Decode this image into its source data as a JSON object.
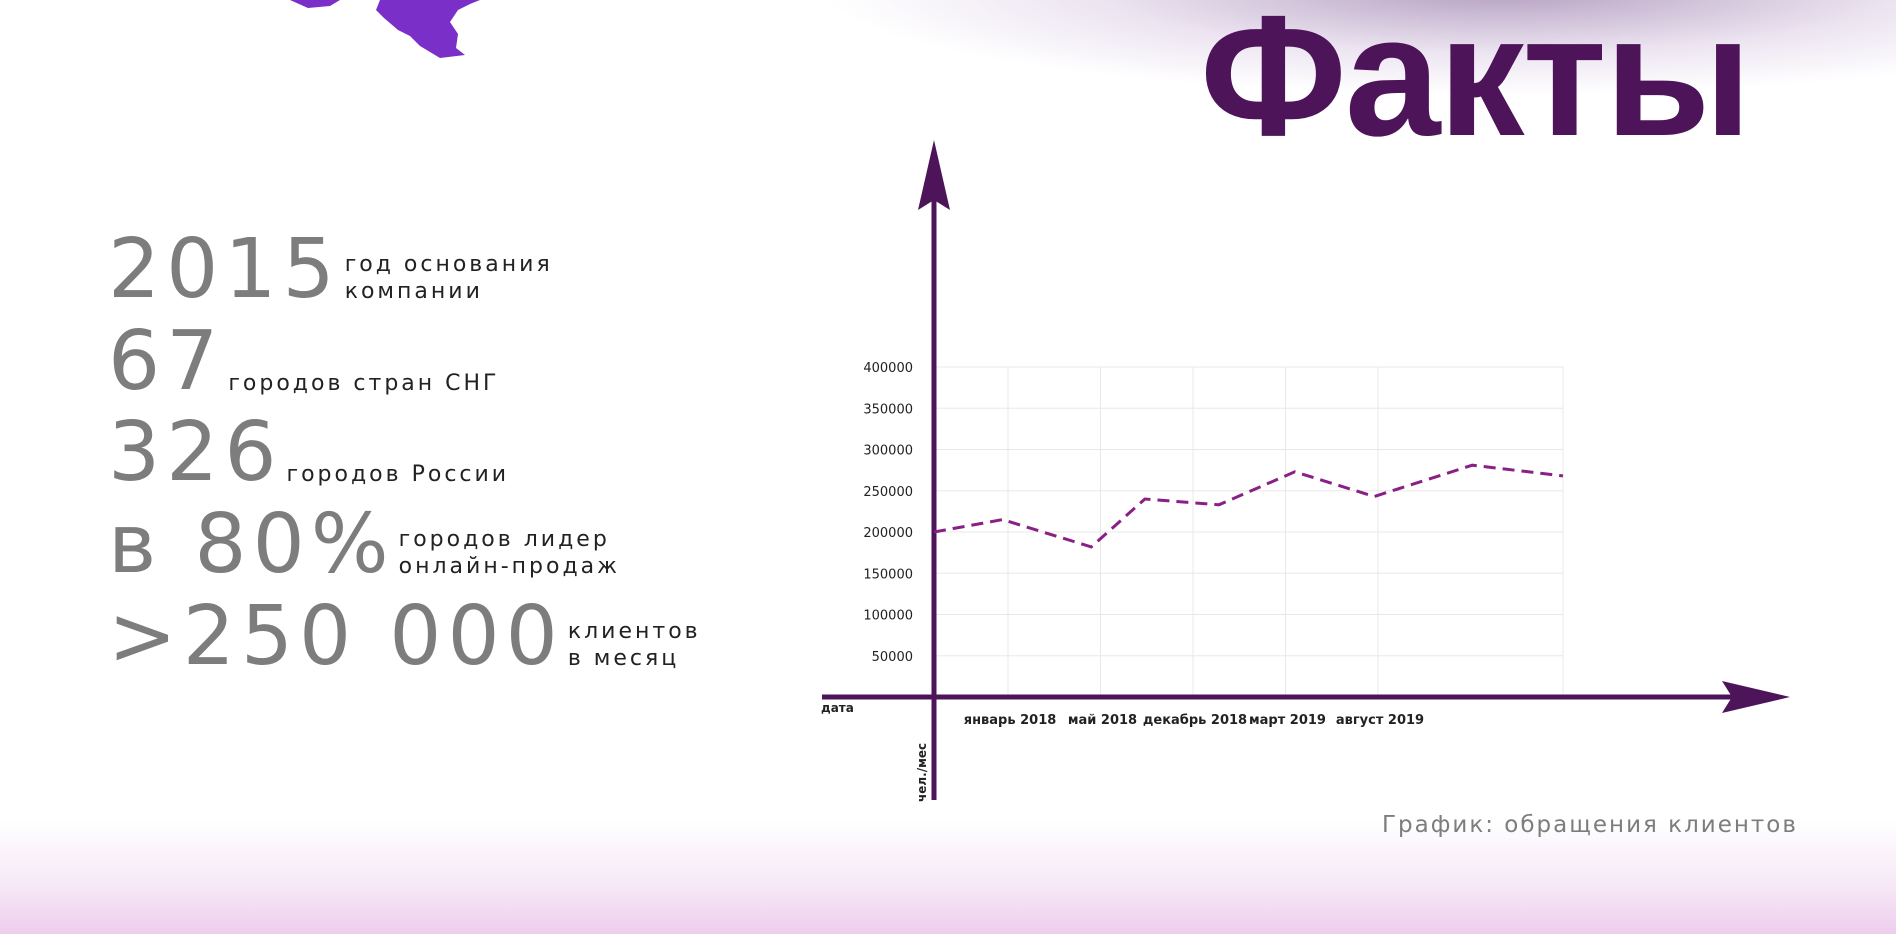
{
  "title": "Факты",
  "colors": {
    "accent": "#4d1459",
    "logo": "#7a2fc8",
    "series": "#8a1f86",
    "muted_text": "#7d7d7d"
  },
  "facts": [
    {
      "big": "2015",
      "small": [
        "год основания",
        "компании"
      ]
    },
    {
      "big": "67",
      "small": [
        "городов стран СНГ"
      ]
    },
    {
      "big": "326",
      "small": [
        "городов России"
      ]
    },
    {
      "big": "в 80%",
      "small": [
        "городов лидер",
        "онлайн-продаж"
      ]
    },
    {
      "big": ">250 000",
      "small": [
        "клиентов",
        "в месяц"
      ]
    }
  ],
  "chart_caption": "График: обращения клиентов",
  "chart_data": {
    "type": "line",
    "title": "",
    "xlabel": "дата",
    "ylabel": "чел./мес",
    "ylim": [
      0,
      400000
    ],
    "yticks": [
      50000,
      100000,
      150000,
      200000,
      250000,
      300000,
      350000,
      400000
    ],
    "ytick_labels": [
      "50000",
      "100000",
      "150000",
      "200000",
      "250000",
      "300000",
      "350000",
      "400000"
    ],
    "xlim": [
      0,
      34
    ],
    "xticks": [
      {
        "x": 4,
        "label": "январь 2018"
      },
      {
        "x": 9,
        "label": "май 2018"
      },
      {
        "x": 14,
        "label": "декабрь 2018"
      },
      {
        "x": 19,
        "label": "март 2019"
      },
      {
        "x": 24,
        "label": "август 2019"
      }
    ],
    "grid": true,
    "legend": "none",
    "series": [
      {
        "line_style": "dashed",
        "x": [
          0,
          3.7,
          8.5,
          11.4,
          15.4,
          19.5,
          23.8,
          29.1,
          34
        ],
        "y": [
          200000,
          215000,
          182000,
          240000,
          233000,
          273000,
          243000,
          281000,
          268000
        ]
      }
    ]
  }
}
